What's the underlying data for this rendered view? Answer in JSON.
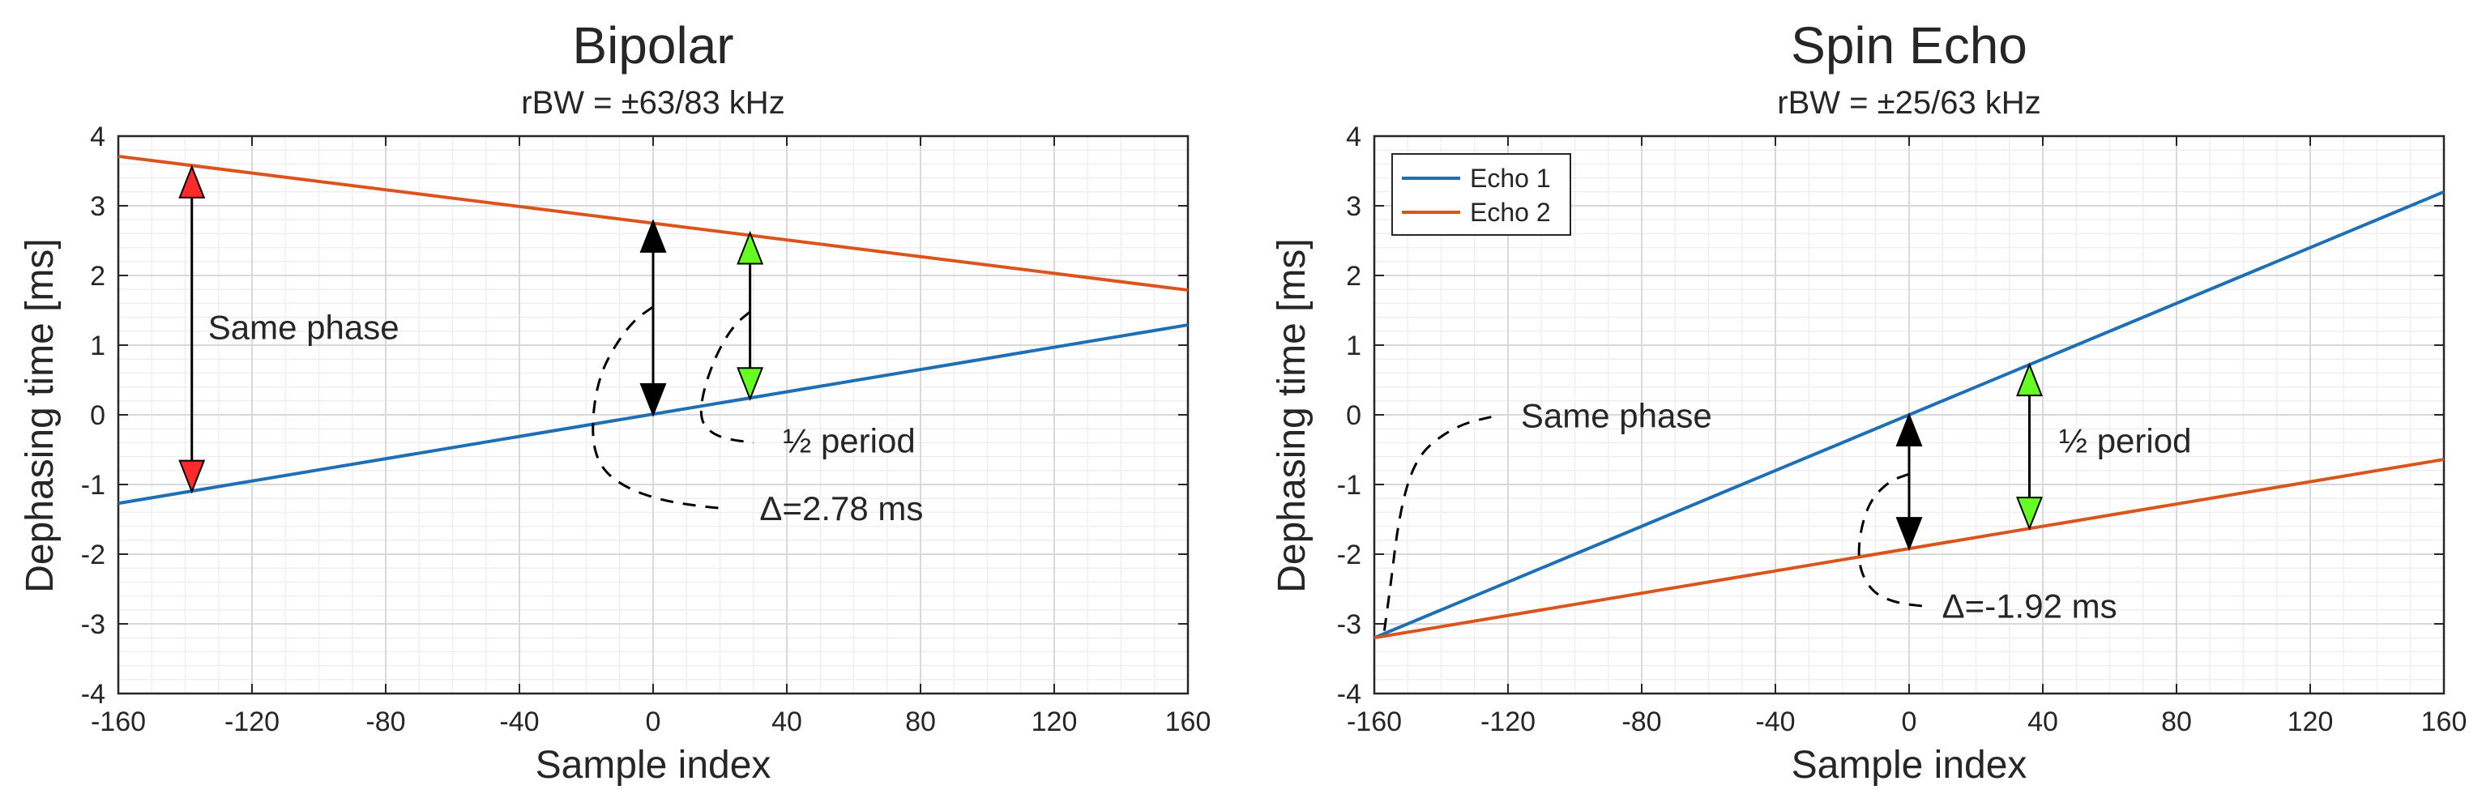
{
  "colors": {
    "echo1": "#1f6fb4",
    "echo2": "#d9541e",
    "red_arrow": "#ff2a2a",
    "green_arrow": "#66ff22",
    "black": "#000000",
    "grid_major": "#d9d9d9",
    "grid_minor": "#efefef"
  },
  "chart_data": [
    {
      "type": "line",
      "title": "Bipolar",
      "subtitle": "rBW = ±63/83 kHz",
      "xlabel": "Sample index",
      "ylabel": "Dephasing time [ms]",
      "xlim": [
        -160,
        160
      ],
      "ylim": [
        -4,
        4
      ],
      "xticks": [
        -160,
        -120,
        -80,
        -40,
        0,
        40,
        80,
        120,
        160
      ],
      "yticks": [
        -4,
        -3,
        -2,
        -1,
        0,
        1,
        2,
        3,
        4
      ],
      "xtick_labels": [
        "-160",
        "-120",
        "-80",
        "-40",
        "0",
        "40",
        "80",
        "120",
        "160"
      ],
      "ytick_labels": [
        "-4",
        "-3",
        "-2",
        "-1",
        "0",
        "1",
        "2",
        "3",
        "4"
      ],
      "grid": true,
      "series": [
        {
          "name": "Echo 1",
          "color_key": "echo1",
          "x": [
            -160,
            160
          ],
          "y": [
            -1.27,
            1.29
          ]
        },
        {
          "name": "Echo 2",
          "color_key": "echo2",
          "x": [
            -160,
            160
          ],
          "y": [
            3.71,
            1.79
          ]
        }
      ],
      "arrows": [
        {
          "x": -138,
          "y1": 3.56,
          "y2": -1.1,
          "color_key": "red_arrow"
        },
        {
          "x": 0,
          "y1": 2.78,
          "y2": 0.0,
          "color_key": "black"
        },
        {
          "x": 29,
          "y1": 2.61,
          "y2": 0.23,
          "color_key": "green_arrow"
        }
      ],
      "annotations": [
        {
          "text": "Same phase",
          "x": -138,
          "y": 1.25
        },
        {
          "text": "½ period",
          "x": 34,
          "y": -0.38
        },
        {
          "text": "Δ=2.78 ms",
          "x": 27,
          "y": -1.35
        }
      ],
      "dashed_curves": [
        [
          [
            0,
            1.55
          ],
          [
            -6,
            1.35
          ],
          [
            -12,
            0.95
          ],
          [
            -16,
            0.55
          ],
          [
            -18,
            0.05
          ],
          [
            -18,
            -0.45
          ],
          [
            -15,
            -0.8
          ],
          [
            -8,
            -1.05
          ],
          [
            2,
            -1.22
          ],
          [
            12,
            -1.3
          ],
          [
            22,
            -1.35
          ]
        ],
        [
          [
            29,
            1.48
          ],
          [
            24,
            1.28
          ],
          [
            19,
            0.88
          ],
          [
            15,
            0.35
          ],
          [
            14,
            -0.05
          ],
          [
            17,
            -0.25
          ],
          [
            22,
            -0.35
          ],
          [
            30,
            -0.4
          ]
        ]
      ],
      "legend": null
    },
    {
      "type": "line",
      "title": "Spin Echo",
      "subtitle": "rBW = ±25/63 kHz",
      "xlabel": "Sample index",
      "ylabel": "Dephasing time [ms]",
      "xlim": [
        -160,
        160
      ],
      "ylim": [
        -4,
        4
      ],
      "xticks": [
        -160,
        -120,
        -80,
        -40,
        0,
        40,
        80,
        120,
        160
      ],
      "yticks": [
        -4,
        -3,
        -2,
        -1,
        0,
        1,
        2,
        3,
        4
      ],
      "xtick_labels": [
        "-160",
        "-120",
        "-80",
        "-40",
        "0",
        "40",
        "80",
        "120",
        "160"
      ],
      "ytick_labels": [
        "-4",
        "-3",
        "-2",
        "-1",
        "0",
        "1",
        "2",
        "3",
        "4"
      ],
      "grid": true,
      "series": [
        {
          "name": "Echo 1",
          "color_key": "echo1",
          "x": [
            -160,
            160
          ],
          "y": [
            -3.2,
            3.2
          ]
        },
        {
          "name": "Echo 2",
          "color_key": "echo2",
          "x": [
            -160,
            160
          ],
          "y": [
            -3.2,
            -0.64
          ]
        }
      ],
      "arrows": [
        {
          "x": 0,
          "y1": 0.0,
          "y2": -1.92,
          "color_key": "black"
        },
        {
          "x": 36,
          "y1": 0.72,
          "y2": -1.63,
          "color_key": "green_arrow"
        }
      ],
      "annotations": [
        {
          "text": "Same phase",
          "x": -121,
          "y": -0.02
        },
        {
          "text": "½ period",
          "x": 40,
          "y": -0.38
        },
        {
          "text": "Δ=-1.92 ms",
          "x": 5,
          "y": -2.75
        }
      ],
      "dashed_curves": [
        [
          [
            -157,
            -3.1
          ],
          [
            -155,
            -2.4
          ],
          [
            -153,
            -1.6
          ],
          [
            -150,
            -0.95
          ],
          [
            -146,
            -0.55
          ],
          [
            -140,
            -0.3
          ],
          [
            -133,
            -0.12
          ],
          [
            -125,
            -0.03
          ]
        ],
        [
          [
            0,
            -0.85
          ],
          [
            -6,
            -0.95
          ],
          [
            -12,
            -1.25
          ],
          [
            -15,
            -1.75
          ],
          [
            -15,
            -2.2
          ],
          [
            -11,
            -2.55
          ],
          [
            -4,
            -2.7
          ],
          [
            5,
            -2.75
          ]
        ]
      ],
      "legend": {
        "placement": "top-left",
        "entries": [
          "Echo 1",
          "Echo 2"
        ]
      }
    }
  ]
}
